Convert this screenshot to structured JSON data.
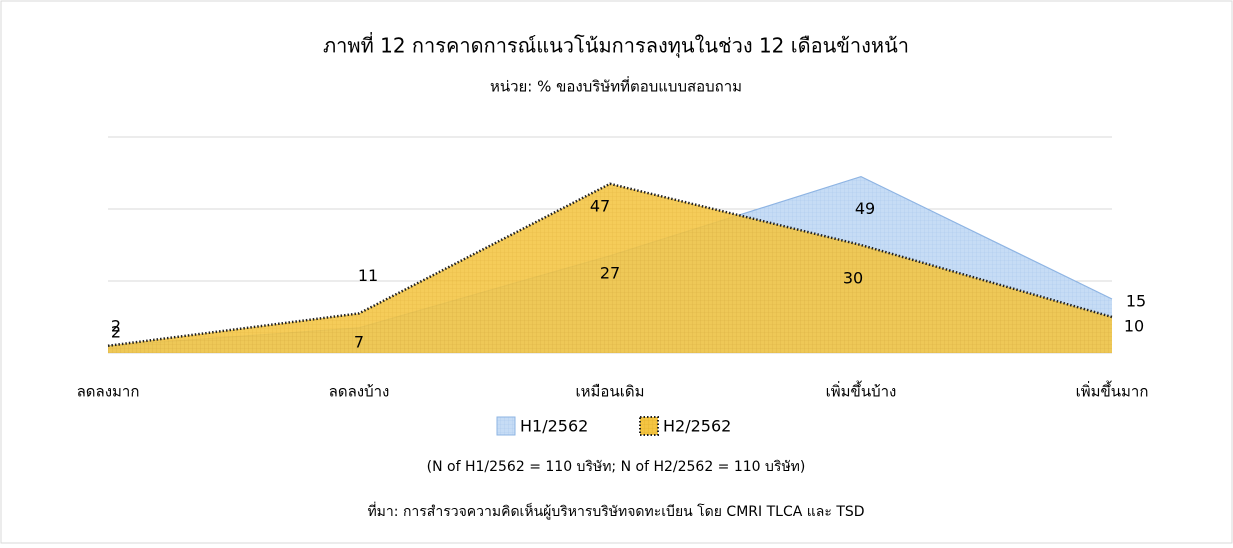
{
  "chart_data": {
    "type": "area",
    "title": "ภาพที่  12 การคาดการณ์แนวโน้มการลงทุนในช่วง 12 เดือนข้างหน้า",
    "subtitle": "หน่วย: % ของบริษัทที่ตอบแบบสอบถาม",
    "categories": [
      "ลดลงมาก",
      "ลดลงบ้าง",
      "เหมือนเดิม",
      "เพิ่มขึ้นบ้าง",
      "เพิ่มขึ้นมาก"
    ],
    "series": [
      {
        "name": "H1/2562",
        "color": "#c6dcf5",
        "values": [
          2,
          7,
          27,
          49,
          15
        ]
      },
      {
        "name": "H2/2562",
        "color": "#f4c542",
        "values": [
          2,
          11,
          47,
          30,
          10
        ]
      }
    ],
    "ylim": [
      0,
      60
    ],
    "yticks": [
      0,
      20,
      40,
      60
    ],
    "grid": true,
    "legend": "bottom",
    "annotations": [
      "(N of H1/2562 = 110 บริษัท; N of H2/2562 = 110 บริษัท)",
      "ที่มา: การสำรวจความคิดเห็นผู้บริหารบริษัทจดทะเบียน  โดย CMRI TLCA และ TSD"
    ]
  }
}
